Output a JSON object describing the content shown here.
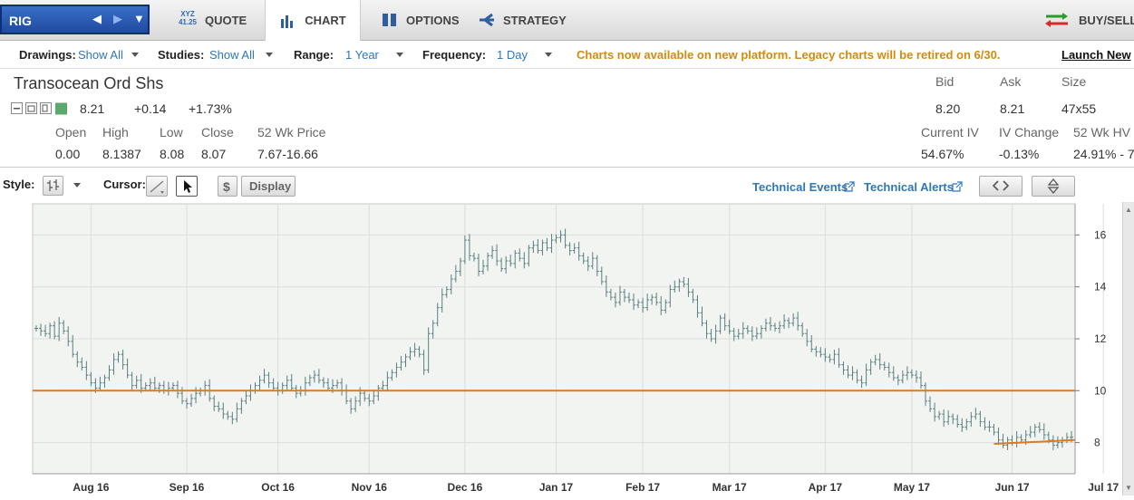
{
  "symbol": "RIG",
  "tabs": {
    "quote_icon_line1": "XYZ",
    "quote_icon_line2": "41.25",
    "quote": "QUOTE",
    "chart": "CHART",
    "options": "OPTIONS",
    "strategy": "STRATEGY",
    "buysell": "BUY/SELL"
  },
  "toolbar": {
    "drawings_label": "Drawings:",
    "drawings_value": "Show All",
    "studies_label": "Studies:",
    "studies_value": "Show All",
    "range_label": "Range:",
    "range_value": "1 Year",
    "frequency_label": "Frequency:",
    "frequency_value": "1 Day",
    "notice": "Charts now available on new platform. Legacy charts will be retired on 6/30.",
    "launch": "Launch New"
  },
  "quote": {
    "name": "Transocean Ord Shs",
    "last": "8.21",
    "change": "+0.14",
    "change_pct": "+1.73%",
    "open_label": "Open",
    "high_label": "High",
    "low_label": "Low",
    "close_label": "Close",
    "wk52_label": "52 Wk Price",
    "open": "0.00",
    "high": "8.1387",
    "low": "8.08",
    "close": "8.07",
    "wk52": "7.67-16.66",
    "bid_label": "Bid",
    "ask_label": "Ask",
    "size_label": "Size",
    "bid": "8.20",
    "ask": "8.21",
    "size": "47x55",
    "civ_label": "Current IV",
    "ivchg_label": "IV Change",
    "hv_label": "52 Wk HV",
    "civ": "54.67%",
    "ivchg": "-0.13%",
    "hv": "24.91% - 7"
  },
  "style_bar": {
    "style_label": "Style:",
    "cursor_label": "Cursor:",
    "display": "Display",
    "dollar": "$",
    "tech_events": "Technical Events",
    "tech_alerts": "Technical Alerts"
  },
  "colors": {
    "bar": "#5a7f7f",
    "trend": "#e07a1f",
    "accent": "#2e77b8",
    "notice": "#d28a10"
  },
  "chart_data": {
    "type": "ohlc",
    "ylim": [
      6.8,
      17.2
    ],
    "yticks": [
      "16",
      "14",
      "12",
      "10",
      "8"
    ],
    "ytick_values": [
      16,
      14,
      12,
      10,
      8
    ],
    "xlabels": [
      "Aug 16",
      "Sep 16",
      "Oct 16",
      "Nov 16",
      "Dec 16",
      "Jan 17",
      "Feb 17",
      "Mar 17",
      "Apr 17",
      "May 17",
      "Jun 17",
      "Jul 17"
    ],
    "xlabel_bar_index": [
      12,
      33,
      53,
      73,
      94,
      114,
      133,
      152,
      173,
      192,
      214,
      234
    ],
    "closes": [
      12.4,
      12.3,
      12.2,
      12.5,
      12.1,
      12.6,
      12.3,
      11.9,
      11.4,
      11.1,
      10.9,
      10.6,
      10.3,
      10.1,
      10.3,
      10.5,
      10.8,
      11.2,
      11.4,
      11.0,
      10.6,
      10.2,
      10.4,
      10.1,
      10.2,
      10.3,
      10.1,
      10.2,
      10.0,
      10.1,
      10.2,
      9.9,
      9.6,
      9.5,
      9.7,
      9.9,
      10.0,
      10.2,
      9.7,
      9.4,
      9.3,
      9.1,
      9.0,
      8.9,
      9.3,
      9.6,
      9.8,
      10.0,
      10.2,
      10.4,
      10.6,
      10.3,
      10.1,
      10.0,
      10.2,
      10.4,
      10.1,
      9.9,
      10.0,
      10.3,
      10.5,
      10.6,
      10.4,
      10.3,
      10.1,
      10.2,
      10.3,
      10.0,
      9.6,
      9.3,
      9.6,
      9.9,
      9.7,
      9.6,
      9.8,
      10.1,
      10.2,
      10.5,
      10.7,
      10.9,
      11.1,
      11.3,
      11.5,
      11.6,
      11.4,
      10.8,
      12.2,
      12.6,
      13.2,
      13.7,
      13.9,
      14.3,
      14.6,
      15.0,
      15.8,
      15.2,
      15.1,
      14.6,
      14.8,
      15.2,
      15.4,
      15.0,
      14.7,
      15.0,
      14.9,
      15.3,
      15.1,
      14.9,
      15.5,
      15.6,
      15.4,
      15.7,
      15.5,
      15.8,
      15.9,
      16.0,
      15.6,
      15.4,
      15.5,
      15.2,
      15.0,
      14.8,
      15.1,
      14.6,
      14.2,
      13.8,
      13.6,
      13.4,
      13.8,
      13.6,
      13.5,
      13.3,
      13.4,
      13.2,
      13.5,
      13.6,
      13.4,
      13.1,
      13.4,
      13.9,
      14.0,
      14.2,
      14.1,
      13.8,
      13.5,
      13.0,
      12.6,
      12.2,
      12.0,
      12.3,
      12.8,
      12.5,
      12.3,
      12.1,
      12.2,
      12.4,
      12.3,
      12.1,
      12.2,
      12.4,
      12.6,
      12.5,
      12.4,
      12.5,
      12.7,
      12.6,
      12.8,
      12.5,
      12.2,
      11.9,
      11.6,
      11.5,
      11.4,
      11.3,
      11.2,
      11.4,
      11.0,
      10.8,
      10.6,
      10.7,
      10.4,
      10.3,
      10.8,
      11.1,
      11.2,
      11.0,
      10.9,
      10.7,
      10.5,
      10.4,
      10.6,
      10.7,
      10.6,
      10.5,
      10.2,
      9.6,
      9.3,
      9.0,
      9.1,
      8.8,
      9.0,
      8.9,
      8.7,
      8.6,
      8.8,
      9.0,
      9.1,
      8.8,
      8.6,
      8.6,
      8.4,
      8.1,
      7.9,
      8.1,
      8.0,
      8.2,
      8.1,
      8.3,
      8.4,
      8.6,
      8.5,
      8.3,
      8.1,
      7.9,
      8.0,
      8.1,
      8.2,
      8.21
    ]
  },
  "trendlines": [
    {
      "from_bar": 0,
      "to_bar": 246,
      "y1": 10.0,
      "y2": 10.0
    },
    {
      "from_bar": 210,
      "to_bar": 246,
      "y1": 7.95,
      "y2": 8.1
    }
  ]
}
